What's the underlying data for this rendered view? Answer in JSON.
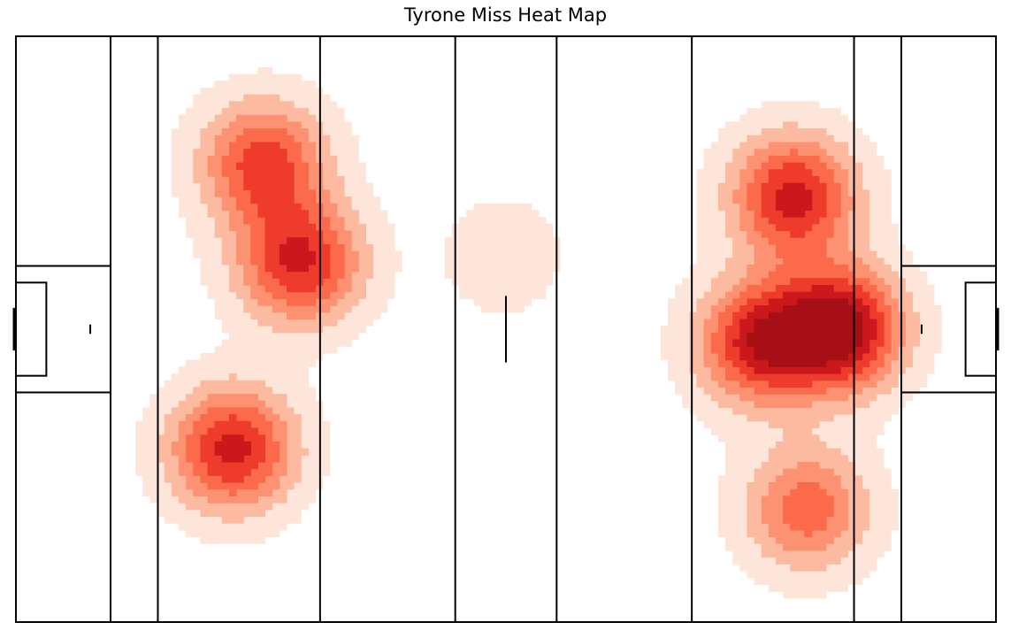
{
  "chart_data": {
    "type": "heatmap",
    "title": "Tyrone Miss Heat Map",
    "xlabel": "",
    "ylabel": "",
    "grid": false,
    "legend": "none",
    "colormap": [
      "#fee5d9",
      "#fcbba1",
      "#fc9272",
      "#fb6a4a",
      "#ef3b2c",
      "#cb181d",
      "#a50f15"
    ],
    "pitch": {
      "length": 145,
      "width": 88,
      "line_color": "#000000",
      "line_markings_x": [
        14,
        21,
        45,
        65,
        80,
        100,
        124,
        131
      ]
    },
    "hotspots": [
      {
        "x": 36.5,
        "y": 69,
        "weight": 0.85
      },
      {
        "x": 42,
        "y": 54,
        "weight": 0.95
      },
      {
        "x": 32,
        "y": 26,
        "weight": 1.0
      },
      {
        "x": 115,
        "y": 64,
        "weight": 1.0
      },
      {
        "x": 122,
        "y": 44,
        "weight": 1.2
      },
      {
        "x": 110,
        "y": 42,
        "weight": 1.0
      },
      {
        "x": 117,
        "y": 17,
        "weight": 0.7
      },
      {
        "x": 72,
        "y": 55,
        "weight": 0.2
      }
    ]
  }
}
